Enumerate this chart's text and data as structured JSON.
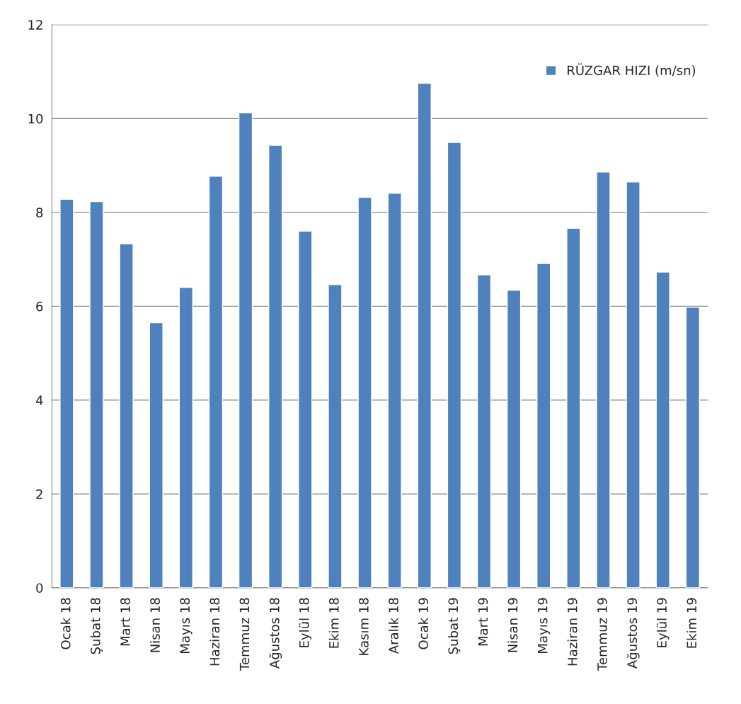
{
  "chart_data": {
    "type": "bar",
    "categories": [
      "Ocak 18",
      "Şubat 18",
      "Mart 18",
      "Nisan 18",
      "Mayıs 18",
      "Haziran 18",
      "Temmuz 18",
      "Ağustos 18",
      "Eylül 18",
      "Ekim 18",
      "Kasım 18",
      "Aralık 18",
      "Ocak 19",
      "Şubat 19",
      "Mart 19",
      "Nisan 19",
      "Mayıs 19",
      "Haziran 19",
      "Temmuz 19",
      "Ağustos 19",
      "Eylül 19",
      "Ekim 19"
    ],
    "series": [
      {
        "name": "RÜZGAR HIZI (m/sn)",
        "color": "#4f81bd",
        "values": [
          8.28,
          8.23,
          7.33,
          5.65,
          6.4,
          8.77,
          10.12,
          9.43,
          7.6,
          6.46,
          8.32,
          8.41,
          10.75,
          9.49,
          6.67,
          6.34,
          6.91,
          7.66,
          8.86,
          8.65,
          6.73,
          5.98
        ]
      }
    ],
    "ylim": [
      0,
      12
    ],
    "yticks": [
      0,
      2,
      4,
      6,
      8,
      10,
      12
    ],
    "grid": "y",
    "legend": "top right"
  }
}
